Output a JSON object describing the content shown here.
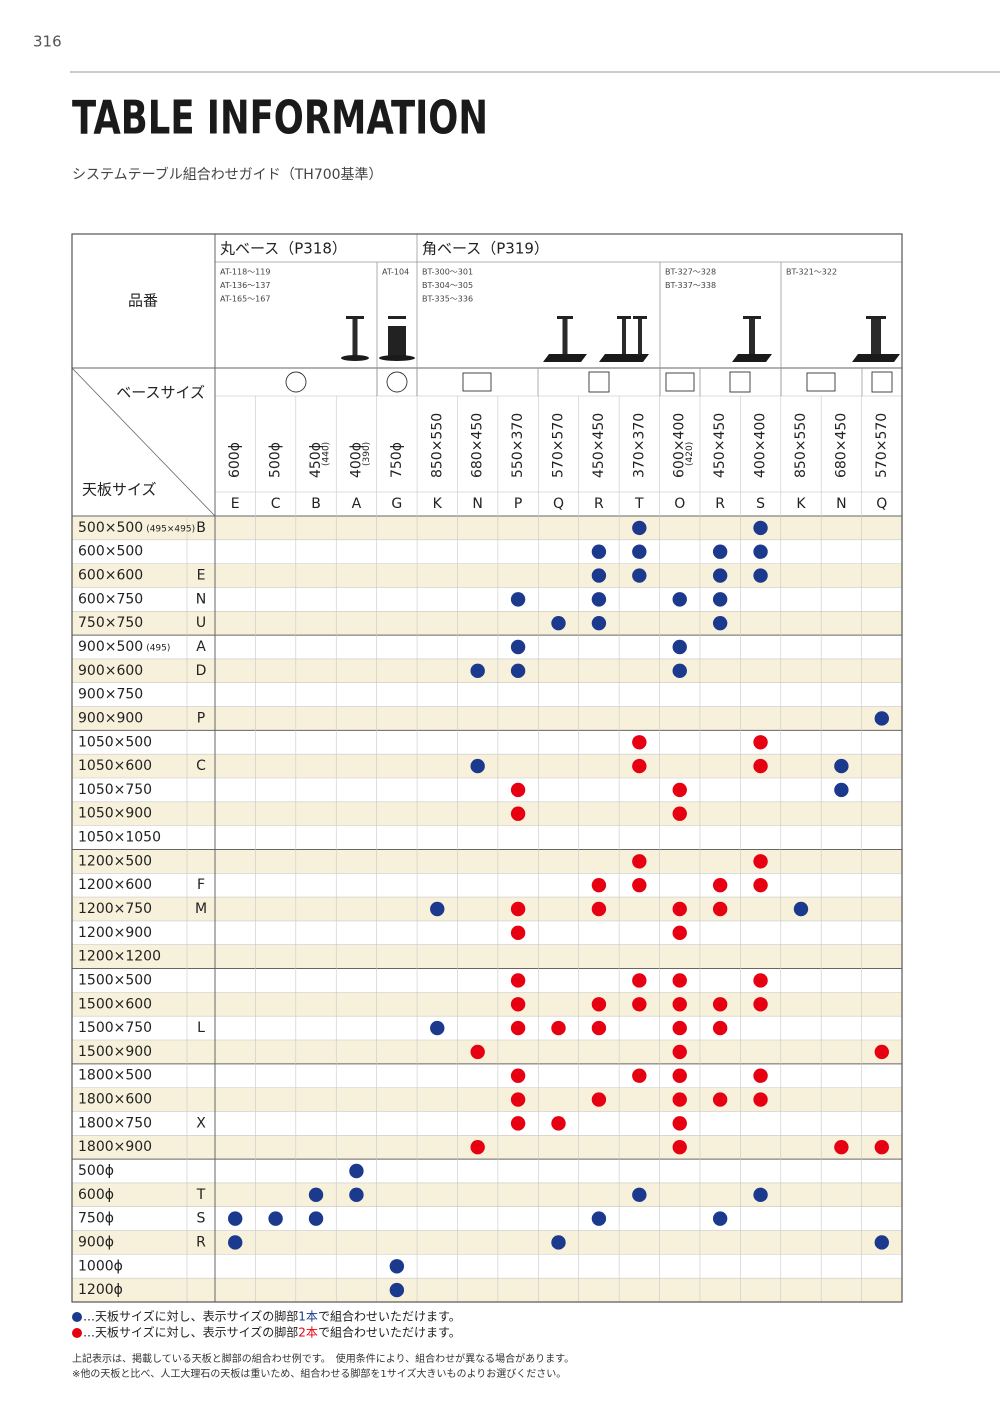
{
  "page_number": "316",
  "title": "TABLE INFORMATION",
  "subtitle": "システムテーブル組合わせガイド（TH700基準）",
  "table": {
    "header_label": "品番",
    "corner_top": "ベースサイズ",
    "corner_bottom": "天板サイズ",
    "groups": [
      "丸ベース（P318）",
      "角ベース（P319）"
    ],
    "models": [
      [
        "AT-118～119",
        "AT-136～137",
        "AT-165～167"
      ],
      [
        "AT-104"
      ],
      [
        "BT-300～301",
        "BT-304～305",
        "BT-335～336"
      ],
      [
        "BT-327～328",
        "BT-337～338"
      ],
      [
        "BT-321～322"
      ]
    ],
    "columns": [
      {
        "size": "600ϕ",
        "code": "E"
      },
      {
        "size": "500ϕ",
        "code": "C"
      },
      {
        "size": "450ϕ",
        "note": "(440)",
        "code": "B"
      },
      {
        "size": "400ϕ",
        "note": "(390)",
        "code": "A"
      },
      {
        "size": "750ϕ",
        "code": "G"
      },
      {
        "size": "850×550",
        "code": "K"
      },
      {
        "size": "680×450",
        "code": "N"
      },
      {
        "size": "550×370",
        "code": "P"
      },
      {
        "size": "570×570",
        "code": "Q"
      },
      {
        "size": "450×450",
        "code": "R"
      },
      {
        "size": "370×370",
        "code": "T"
      },
      {
        "size": "600×400",
        "note": "(420)",
        "code": "O"
      },
      {
        "size": "450×450",
        "code": "R"
      },
      {
        "size": "400×400",
        "code": "S"
      },
      {
        "size": "850×550",
        "code": "K"
      },
      {
        "size": "680×450",
        "code": "N"
      },
      {
        "size": "570×570",
        "code": "Q"
      }
    ],
    "rows": [
      {
        "label": "500×500",
        "note": "(495×495)",
        "code": "B",
        "cells": [
          null,
          null,
          null,
          null,
          null,
          null,
          null,
          null,
          null,
          null,
          1,
          null,
          null,
          1,
          null,
          null,
          null
        ]
      },
      {
        "label": "600×500",
        "cells": [
          null,
          null,
          null,
          null,
          null,
          null,
          null,
          null,
          null,
          1,
          1,
          null,
          1,
          1,
          null,
          null,
          null
        ]
      },
      {
        "label": "600×600",
        "code": "E",
        "cells": [
          null,
          null,
          null,
          null,
          null,
          null,
          null,
          null,
          null,
          1,
          1,
          null,
          1,
          1,
          null,
          null,
          null
        ]
      },
      {
        "label": "600×750",
        "code": "N",
        "cells": [
          null,
          null,
          null,
          null,
          null,
          null,
          null,
          1,
          null,
          1,
          null,
          1,
          1,
          null,
          null,
          null,
          null
        ]
      },
      {
        "label": "750×750",
        "code": "U",
        "cells": [
          null,
          null,
          null,
          null,
          null,
          null,
          null,
          null,
          1,
          1,
          null,
          null,
          1,
          null,
          null,
          null,
          null
        ]
      },
      {
        "label": "900×500",
        "note": "(495)",
        "code": "A",
        "cells": [
          null,
          null,
          null,
          null,
          null,
          null,
          null,
          1,
          null,
          null,
          null,
          1,
          null,
          null,
          null,
          null,
          null
        ]
      },
      {
        "label": "900×600",
        "code": "D",
        "cells": [
          null,
          null,
          null,
          null,
          null,
          null,
          1,
          1,
          null,
          null,
          null,
          1,
          null,
          null,
          null,
          null,
          null
        ]
      },
      {
        "label": "900×750",
        "cells": [
          null,
          null,
          null,
          null,
          null,
          null,
          null,
          null,
          null,
          null,
          null,
          null,
          null,
          null,
          null,
          null,
          null
        ]
      },
      {
        "label": "900×900",
        "code": "P",
        "cells": [
          null,
          null,
          null,
          null,
          null,
          null,
          null,
          null,
          null,
          null,
          null,
          null,
          null,
          null,
          null,
          null,
          1
        ]
      },
      {
        "label": "1050×500",
        "cells": [
          null,
          null,
          null,
          null,
          null,
          null,
          null,
          null,
          null,
          null,
          2,
          null,
          null,
          2,
          null,
          null,
          null
        ]
      },
      {
        "label": "1050×600",
        "code": "C",
        "cells": [
          null,
          null,
          null,
          null,
          null,
          null,
          1,
          null,
          null,
          null,
          2,
          null,
          null,
          2,
          null,
          1,
          null
        ]
      },
      {
        "label": "1050×750",
        "cells": [
          null,
          null,
          null,
          null,
          null,
          null,
          null,
          2,
          null,
          null,
          null,
          2,
          null,
          null,
          null,
          1,
          null
        ]
      },
      {
        "label": "1050×900",
        "cells": [
          null,
          null,
          null,
          null,
          null,
          null,
          null,
          2,
          null,
          null,
          null,
          2,
          null,
          null,
          null,
          null,
          null
        ]
      },
      {
        "label": "1050×1050",
        "cells": [
          null,
          null,
          null,
          null,
          null,
          null,
          null,
          null,
          null,
          null,
          null,
          null,
          null,
          null,
          null,
          null,
          null
        ]
      },
      {
        "label": "1200×500",
        "cells": [
          null,
          null,
          null,
          null,
          null,
          null,
          null,
          null,
          null,
          null,
          2,
          null,
          null,
          2,
          null,
          null,
          null
        ]
      },
      {
        "label": "1200×600",
        "code": "F",
        "cells": [
          null,
          null,
          null,
          null,
          null,
          null,
          null,
          null,
          null,
          2,
          2,
          null,
          2,
          2,
          null,
          null,
          null
        ]
      },
      {
        "label": "1200×750",
        "code": "M",
        "cells": [
          null,
          null,
          null,
          null,
          null,
          1,
          null,
          2,
          null,
          2,
          null,
          2,
          2,
          null,
          1,
          null,
          null
        ]
      },
      {
        "label": "1200×900",
        "cells": [
          null,
          null,
          null,
          null,
          null,
          null,
          null,
          2,
          null,
          null,
          null,
          2,
          null,
          null,
          null,
          null,
          null
        ]
      },
      {
        "label": "1200×1200",
        "cells": [
          null,
          null,
          null,
          null,
          null,
          null,
          null,
          null,
          null,
          null,
          null,
          null,
          null,
          null,
          null,
          null,
          null
        ]
      },
      {
        "label": "1500×500",
        "cells": [
          null,
          null,
          null,
          null,
          null,
          null,
          null,
          2,
          null,
          null,
          2,
          2,
          null,
          2,
          null,
          null,
          null
        ]
      },
      {
        "label": "1500×600",
        "cells": [
          null,
          null,
          null,
          null,
          null,
          null,
          null,
          2,
          null,
          2,
          2,
          2,
          2,
          2,
          null,
          null,
          null
        ]
      },
      {
        "label": "1500×750",
        "code": "L",
        "cells": [
          null,
          null,
          null,
          null,
          null,
          1,
          null,
          2,
          2,
          2,
          null,
          2,
          2,
          null,
          null,
          null,
          null
        ]
      },
      {
        "label": "1500×900",
        "cells": [
          null,
          null,
          null,
          null,
          null,
          null,
          2,
          null,
          null,
          null,
          null,
          2,
          null,
          null,
          null,
          null,
          2
        ]
      },
      {
        "label": "1800×500",
        "cells": [
          null,
          null,
          null,
          null,
          null,
          null,
          null,
          2,
          null,
          null,
          2,
          2,
          null,
          2,
          null,
          null,
          null
        ]
      },
      {
        "label": "1800×600",
        "cells": [
          null,
          null,
          null,
          null,
          null,
          null,
          null,
          2,
          null,
          2,
          null,
          2,
          2,
          2,
          null,
          null,
          null
        ]
      },
      {
        "label": "1800×750",
        "code": "X",
        "cells": [
          null,
          null,
          null,
          null,
          null,
          null,
          null,
          2,
          2,
          null,
          null,
          2,
          null,
          null,
          null,
          null,
          null
        ]
      },
      {
        "label": "1800×900",
        "cells": [
          null,
          null,
          null,
          null,
          null,
          null,
          2,
          null,
          null,
          null,
          null,
          2,
          null,
          null,
          null,
          2,
          2
        ]
      },
      {
        "label": "500ϕ",
        "cells": [
          null,
          null,
          null,
          1,
          null,
          null,
          null,
          null,
          null,
          null,
          null,
          null,
          null,
          null,
          null,
          null,
          null
        ]
      },
      {
        "label": "600ϕ",
        "code": "T",
        "cells": [
          null,
          null,
          1,
          1,
          null,
          null,
          null,
          null,
          null,
          null,
          1,
          null,
          null,
          1,
          null,
          null,
          null
        ]
      },
      {
        "label": "750ϕ",
        "code": "S",
        "cells": [
          1,
          1,
          1,
          null,
          null,
          null,
          null,
          null,
          null,
          1,
          null,
          null,
          1,
          null,
          null,
          null,
          null
        ]
      },
      {
        "label": "900ϕ",
        "code": "R",
        "cells": [
          1,
          null,
          null,
          null,
          null,
          null,
          null,
          null,
          1,
          null,
          null,
          null,
          null,
          null,
          null,
          null,
          1
        ]
      },
      {
        "label": "1000ϕ",
        "cells": [
          null,
          null,
          null,
          null,
          1,
          null,
          null,
          null,
          null,
          null,
          null,
          null,
          null,
          null,
          null,
          null,
          null
        ]
      },
      {
        "label": "1200ϕ",
        "cells": [
          null,
          null,
          null,
          null,
          1,
          null,
          null,
          null,
          null,
          null,
          null,
          null,
          null,
          null,
          null,
          null,
          null
        ]
      }
    ]
  },
  "legend": [
    {
      "legs": 1,
      "color": "#1b3a8e",
      "before": "…天板サイズに対し、表示サイズの脚部",
      "legs_label": "1本",
      "after": "で組合わせいただけます。"
    },
    {
      "legs": 2,
      "color": "#e60012",
      "before": "…天板サイズに対し、表示サイズの脚部",
      "legs_label": "2本",
      "after": "で組合わせいただけます。"
    }
  ],
  "notes": [
    "上記表示は、掲載している天板と脚部の組合わせ例です。　使用条件により、組合わせが異なる場合があります。",
    "※他の天板と比べ、人工大理石の天板は重いため、組合わせる脚部を1サイズ大きいものよりお選びください。"
  ]
}
